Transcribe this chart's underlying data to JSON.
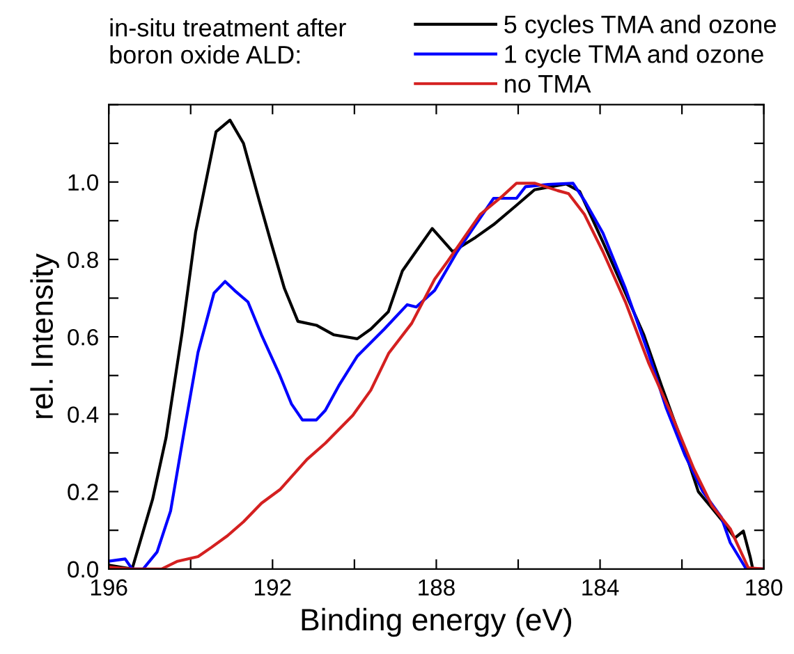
{
  "chart_data": {
    "type": "line",
    "xlabel": "Binding energy (eV)",
    "ylabel": "rel. Intensity",
    "annotations": [
      "in-situ treatment after\nboron oxide ALD:"
    ],
    "xlim": [
      196,
      180
    ],
    "ylim": [
      0,
      1.2
    ],
    "xticks": [
      196,
      {
        "value": 194,
        "label": null
      },
      192,
      {
        "value": 190,
        "label": null
      },
      188,
      {
        "value": 186,
        "label": null
      },
      184,
      {
        "value": 182,
        "label": null
      },
      180
    ],
    "yticks": [
      {
        "value": 0,
        "label": "0.0"
      },
      {
        "value": 0.1,
        "label": null
      },
      {
        "value": 0.2,
        "label": "0.2"
      },
      {
        "value": 0.3,
        "label": null
      },
      {
        "value": 0.4,
        "label": "0.4"
      },
      {
        "value": 0.5,
        "label": null
      },
      {
        "value": 0.6,
        "label": "0.6"
      },
      {
        "value": 0.7,
        "label": null
      },
      {
        "value": 0.8,
        "label": "0.8"
      },
      {
        "value": 0.9,
        "label": null
      },
      {
        "value": 1.0,
        "label": "1.0"
      },
      {
        "value": 1.1,
        "label": null
      },
      {
        "value": 1.2,
        "label": null
      }
    ],
    "grid": false,
    "legend": "top right",
    "marker": "none",
    "line_style": "solid",
    "series": [
      {
        "name": "5 cycles TMA and ozone",
        "color": "#000000",
        "x": [
          196,
          195.43,
          194.93,
          194.6,
          194.21,
          193.88,
          193.38,
          193.04,
          192.71,
          192.32,
          192.04,
          191.71,
          191.38,
          190.93,
          190.5,
          189.93,
          189.6,
          189.17,
          188.83,
          188.5,
          188.1,
          187.6,
          187.04,
          186.6,
          186.04,
          185.6,
          184.83,
          184.5,
          183.93,
          183.38,
          182.93,
          182.5,
          182.04,
          181.6,
          181.04,
          180.71,
          180.5,
          180.33,
          180.27,
          180
        ],
        "values": [
          0.01,
          0.0,
          0.18,
          0.34,
          0.61,
          0.87,
          1.13,
          1.16,
          1.1,
          0.95,
          0.845,
          0.725,
          0.64,
          0.63,
          0.605,
          0.595,
          0.62,
          0.665,
          0.77,
          0.82,
          0.88,
          0.82,
          0.857,
          0.89,
          0.94,
          0.98,
          0.995,
          0.976,
          0.845,
          0.713,
          0.605,
          0.474,
          0.34,
          0.2,
          0.128,
          0.08,
          0.098,
          0.03,
          0.0,
          0.0
        ]
      },
      {
        "name": "1 cycle TMA and ozone",
        "color": "#0000ff",
        "x": [
          196,
          195.6,
          195.43,
          195.16,
          194.82,
          194.49,
          194.16,
          193.82,
          193.43,
          193.16,
          192.93,
          192.6,
          192.27,
          191.82,
          191.54,
          191.27,
          190.93,
          190.71,
          190.38,
          189.93,
          189.27,
          188.71,
          188.49,
          188.04,
          187.49,
          187.04,
          186.6,
          186.04,
          185.82,
          185.27,
          184.66,
          184.38,
          183.93,
          183.38,
          182.82,
          182.38,
          181.93,
          181.49,
          181.04,
          180.82,
          180.43,
          180
        ],
        "values": [
          0.02,
          0.026,
          0.0,
          0.0,
          0.044,
          0.15,
          0.355,
          0.56,
          0.713,
          0.743,
          0.72,
          0.69,
          0.605,
          0.5,
          0.427,
          0.385,
          0.385,
          0.41,
          0.474,
          0.55,
          0.62,
          0.683,
          0.677,
          0.72,
          0.82,
          0.89,
          0.958,
          0.958,
          0.988,
          0.994,
          0.997,
          0.952,
          0.868,
          0.725,
          0.558,
          0.415,
          0.295,
          0.2,
          0.134,
          0.068,
          0.0,
          0.0
        ]
      },
      {
        "name": "no TMA",
        "color": "#d42020",
        "x": [
          196,
          195.46,
          194.71,
          194.32,
          193.82,
          193.49,
          193.1,
          192.71,
          192.27,
          191.82,
          191.16,
          190.71,
          190.04,
          189.6,
          189.16,
          188.6,
          188.04,
          187.71,
          186.93,
          186.38,
          186.04,
          185.6,
          185.04,
          184.77,
          184.38,
          183.93,
          183.38,
          182.82,
          182.27,
          181.71,
          181.27,
          180.82,
          180.38,
          180
        ],
        "values": [
          0.005,
          0.0,
          0.0,
          0.02,
          0.032,
          0.056,
          0.086,
          0.122,
          0.17,
          0.205,
          0.283,
          0.325,
          0.397,
          0.462,
          0.558,
          0.635,
          0.749,
          0.797,
          0.916,
          0.964,
          0.997,
          0.997,
          0.978,
          0.97,
          0.916,
          0.82,
          0.69,
          0.534,
          0.403,
          0.259,
          0.164,
          0.104,
          0.003,
          0.0
        ]
      }
    ]
  }
}
